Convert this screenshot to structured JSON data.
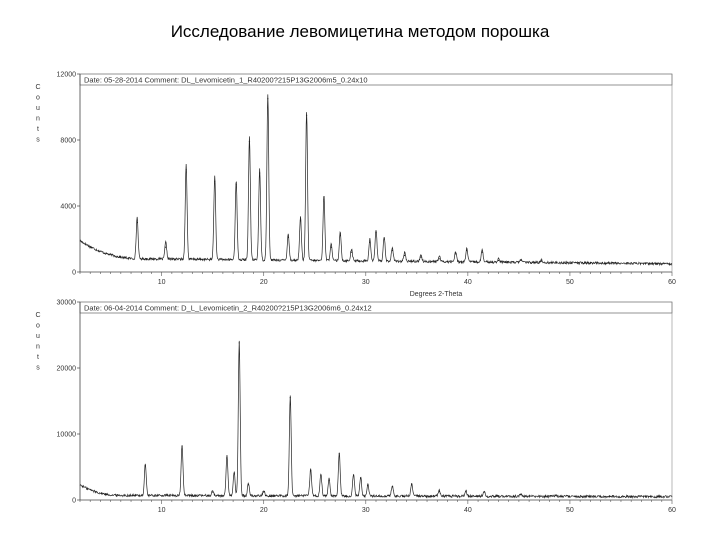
{
  "slide": {
    "title": "Исследование левомицетина методом порошка"
  },
  "chart_data": [
    {
      "type": "line",
      "header": "Date: 05-28-2014   Comment: DL_Levomicetin_1_R40200?215P13G2006m5_0.24x10",
      "ylabel_letters": [
        "C",
        "o",
        "u",
        "n",
        "t",
        "s"
      ],
      "xlabel": "Degrees 2-Theta",
      "xlim": [
        2,
        60
      ],
      "ylim": [
        0,
        12000
      ],
      "yticks": [
        0,
        4000,
        8000,
        12000
      ],
      "ytick_labels": [
        "0",
        "4000",
        "8000",
        "12000"
      ],
      "xticks": [
        10,
        20,
        30,
        40,
        50,
        60
      ],
      "baseline": {
        "start_x": 2.0,
        "start_y": 1900,
        "plateau_x": 8.0,
        "plateau_y": 800,
        "end_x": 60.0,
        "end_y": 500
      },
      "peaks": [
        [
          7.6,
          3000
        ],
        [
          10.4,
          1500
        ],
        [
          12.4,
          6200
        ],
        [
          15.2,
          5500
        ],
        [
          17.3,
          5300
        ],
        [
          18.6,
          7900
        ],
        [
          19.6,
          6000
        ],
        [
          20.4,
          10500
        ],
        [
          22.4,
          2100
        ],
        [
          23.6,
          3100
        ],
        [
          24.2,
          9500
        ],
        [
          25.9,
          4400
        ],
        [
          26.6,
          1500
        ],
        [
          27.5,
          2200
        ],
        [
          28.6,
          1200
        ],
        [
          30.4,
          1800
        ],
        [
          31.0,
          2400
        ],
        [
          31.8,
          2000
        ],
        [
          32.6,
          1300
        ],
        [
          33.8,
          1000
        ],
        [
          35.4,
          900
        ],
        [
          37.2,
          800
        ],
        [
          38.8,
          1100
        ],
        [
          39.9,
          1300
        ],
        [
          41.4,
          1200
        ],
        [
          43.0,
          700
        ],
        [
          45.2,
          700
        ],
        [
          47.2,
          650
        ]
      ]
    },
    {
      "type": "line",
      "header": "Date: 06-04-2014   Comment: D_L_Levomicetin_2_R40200?215P13G2006m6_0.24x12",
      "ylabel_letters": [
        "C",
        "o",
        "u",
        "n",
        "t",
        "s"
      ],
      "xlabel": "",
      "xlim": [
        2,
        60
      ],
      "ylim": [
        0,
        30000
      ],
      "yticks": [
        0,
        10000,
        20000,
        30000
      ],
      "ytick_labels": [
        "0",
        "10000",
        "20000",
        "30000"
      ],
      "xticks": [
        10,
        20,
        30,
        40,
        50,
        60
      ],
      "baseline": {
        "start_x": 2.0,
        "start_y": 2300,
        "plateau_x": 6.0,
        "plateau_y": 700,
        "end_x": 60.0,
        "end_y": 500
      },
      "peaks": [
        [
          8.4,
          5200
        ],
        [
          12.0,
          8100
        ],
        [
          15.0,
          1200
        ],
        [
          16.4,
          6400
        ],
        [
          17.1,
          4000
        ],
        [
          17.6,
          23800
        ],
        [
          18.5,
          2300
        ],
        [
          20.0,
          1200
        ],
        [
          22.6,
          15500
        ],
        [
          24.6,
          4500
        ],
        [
          25.6,
          3800
        ],
        [
          26.4,
          3000
        ],
        [
          27.4,
          7000
        ],
        [
          28.8,
          3800
        ],
        [
          29.5,
          3300
        ],
        [
          30.2,
          2200
        ],
        [
          32.6,
          2000
        ],
        [
          34.5,
          2300
        ],
        [
          37.2,
          1300
        ],
        [
          39.8,
          1300
        ],
        [
          41.6,
          1200
        ],
        [
          45.2,
          800
        ],
        [
          48.6,
          700
        ]
      ]
    }
  ]
}
